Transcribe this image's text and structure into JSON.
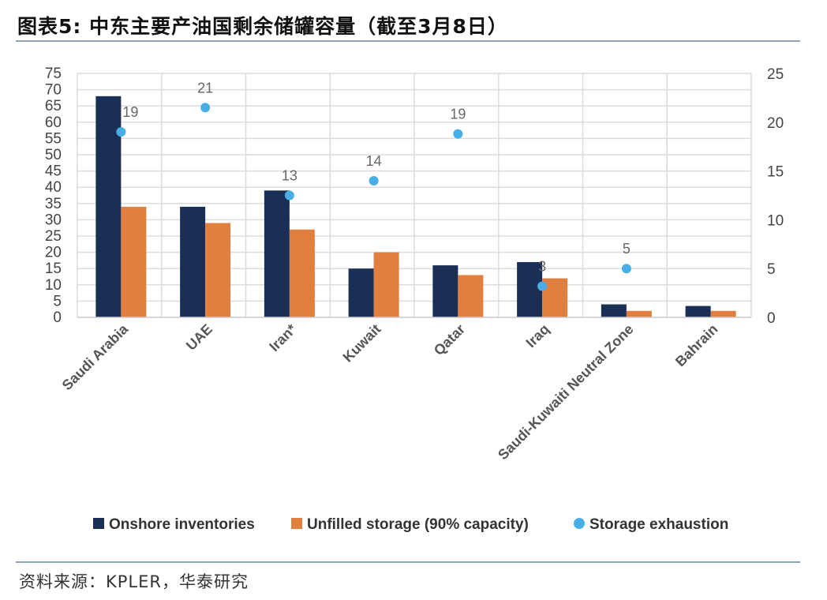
{
  "title": "图表5:   中东主要产油国剩余储罐容量（截至3月8日）",
  "source": "资料来源：KPLER，华泰研究",
  "chart_data": {
    "type": "bar",
    "categories": [
      "Saudi Arabia",
      "UAE",
      "Iran*",
      "Kuwait",
      "Qatar",
      "Iraq",
      "Saudi-Kuwaiti Neutral Zone",
      "Bahrain"
    ],
    "series": [
      {
        "name": "Onshore inventories",
        "type": "bar",
        "axis": "left",
        "color": "#1a2f55",
        "values": [
          68,
          34,
          39,
          15,
          16,
          17,
          4,
          3.5
        ]
      },
      {
        "name": "Unfilled storage (90% capacity)",
        "type": "bar",
        "axis": "left",
        "color": "#e07f3e",
        "values": [
          34,
          29,
          27,
          20,
          13,
          12,
          2,
          2
        ]
      },
      {
        "name": "Storage exhaustion",
        "type": "scatter",
        "axis": "right",
        "color": "#4aaee6",
        "values": [
          19,
          21.5,
          12.5,
          14,
          18.8,
          3.2,
          5,
          null
        ],
        "labels": [
          "19",
          "21",
          "13",
          "14",
          "19",
          "3",
          "5",
          ""
        ]
      }
    ],
    "ylim_left": [
      0,
      75
    ],
    "yticks_left": [
      "0",
      "5",
      "10",
      "15",
      "20",
      "25",
      "30",
      "35",
      "40",
      "45",
      "50",
      "55",
      "60",
      "65",
      "70",
      "75"
    ],
    "ylim_right": [
      0,
      25
    ],
    "yticks_right": [
      "0",
      "5",
      "10",
      "15",
      "20",
      "25"
    ],
    "grid": true,
    "legend": "bottom"
  }
}
